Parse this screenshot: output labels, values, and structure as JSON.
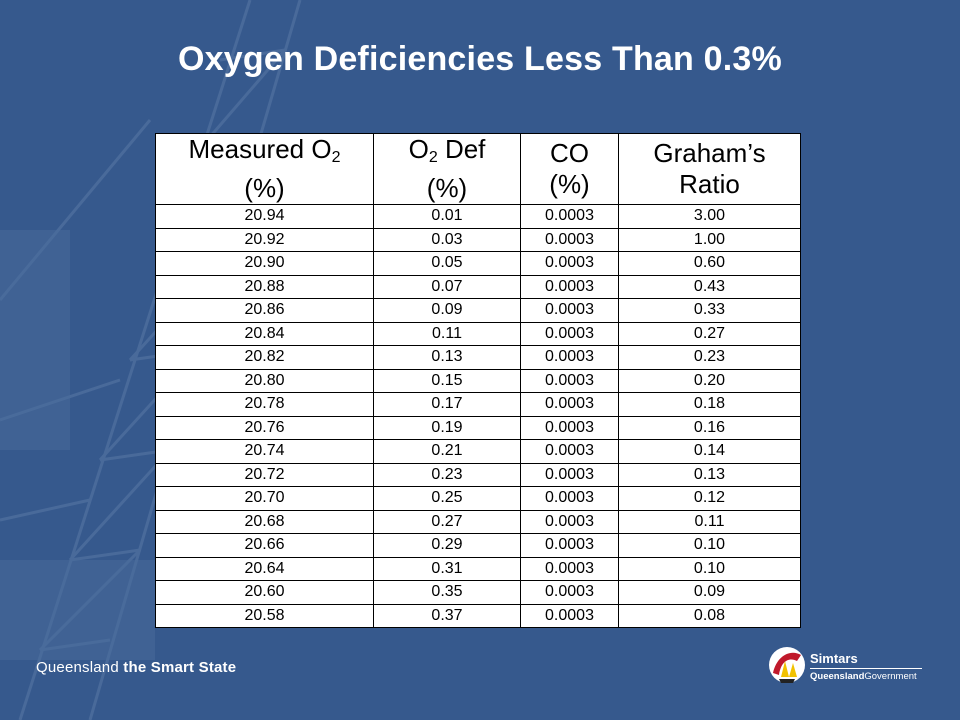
{
  "slide": {
    "title": "Oxygen Deficiencies Less Than 0.3%"
  },
  "table": {
    "headers": [
      {
        "line1": "Measured O",
        "sub": "2",
        "line2": "(%)"
      },
      {
        "line1a": "O",
        "sub": "2",
        "line1b": " Def",
        "line2": "(%)"
      },
      {
        "line1": "CO",
        "line2": "(%)"
      },
      {
        "line1": "Graham’s",
        "line2": "Ratio"
      }
    ],
    "rows": [
      [
        "20.94",
        "0.01",
        "0.0003",
        "3.00"
      ],
      [
        "20.92",
        "0.03",
        "0.0003",
        "1.00"
      ],
      [
        "20.90",
        "0.05",
        "0.0003",
        "0.60"
      ],
      [
        "20.88",
        "0.07",
        "0.0003",
        "0.43"
      ],
      [
        "20.86",
        "0.09",
        "0.0003",
        "0.33"
      ],
      [
        "20.84",
        "0.11",
        "0.0003",
        "0.27"
      ],
      [
        "20.82",
        "0.13",
        "0.0003",
        "0.23"
      ],
      [
        "20.80",
        "0.15",
        "0.0003",
        "0.20"
      ],
      [
        "20.78",
        "0.17",
        "0.0003",
        "0.18"
      ],
      [
        "20.76",
        "0.19",
        "0.0003",
        "0.16"
      ],
      [
        "20.74",
        "0.21",
        "0.0003",
        "0.14"
      ],
      [
        "20.72",
        "0.23",
        "0.0003",
        "0.13"
      ],
      [
        "20.70",
        "0.25",
        "0.0003",
        "0.12"
      ],
      [
        "20.68",
        "0.27",
        "0.0003",
        "0.11"
      ],
      [
        "20.66",
        "0.29",
        "0.0003",
        "0.10"
      ],
      [
        "20.64",
        "0.31",
        "0.0003",
        "0.10"
      ],
      [
        "20.60",
        "0.35",
        "0.0003",
        "0.09"
      ],
      [
        "20.58",
        "0.37",
        "0.0003",
        "0.08"
      ]
    ]
  },
  "footer": {
    "left_regular": "Queensland ",
    "left_bold": "the Smart State",
    "brand_name": "Simtars",
    "brand_gov_bold": "Queensland",
    "brand_gov_regular": "Government",
    "logo_icon": "simtars-logo-icon"
  },
  "colors": {
    "background": "#36598d",
    "table_bg": "#ffffff",
    "title": "#ffffff"
  }
}
